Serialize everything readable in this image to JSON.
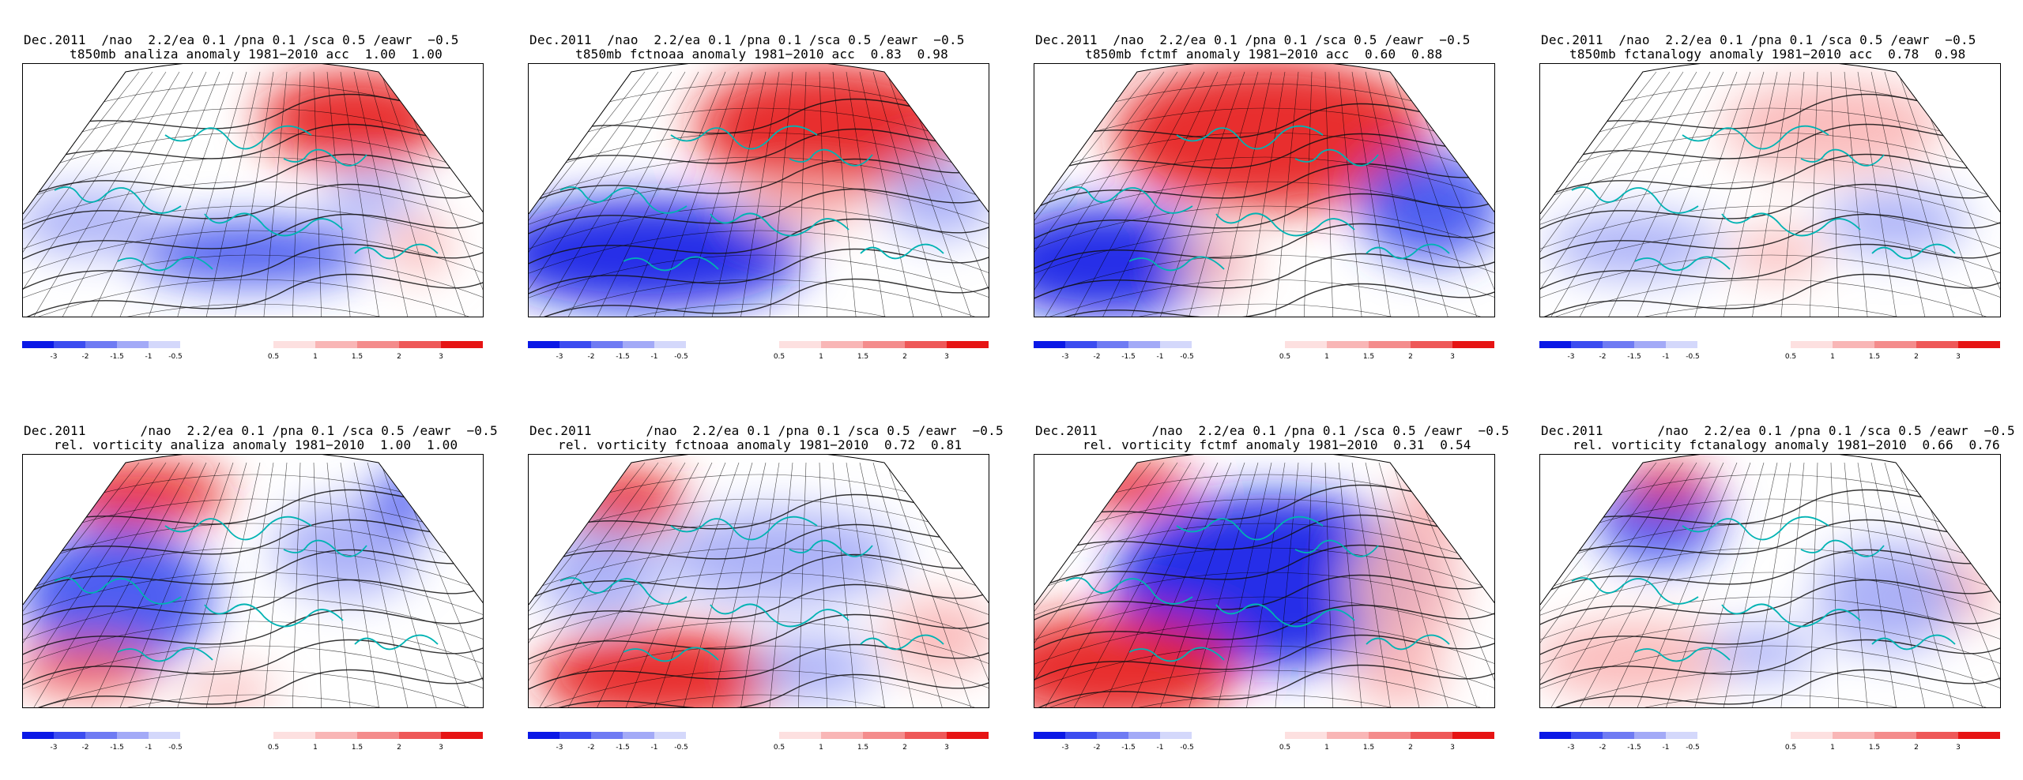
{
  "colorbar": {
    "neg_labels": [
      "-3",
      "-2",
      "-1.5",
      "-1",
      "-0.5"
    ],
    "pos_labels": [
      "0.5",
      "1",
      "1.5",
      "2",
      "3"
    ],
    "neg_colors": [
      "#0a18e6",
      "#3c4cf0",
      "#6f7bf3",
      "#a3aaf7",
      "#d4d8fb"
    ],
    "pos_colors": [
      "#fde0e0",
      "#f9b6b6",
      "#f48c8c",
      "#ee5858",
      "#e61414"
    ]
  },
  "panels": [
    {
      "line1": "Dec.2011  /nao  2.2/ea 0.1 /pna 0.1 /sca 0.5 /eawr  −0.5",
      "line2": "t850mb analiza anomaly 1981−2010 acc  1.00  1.00"
    },
    {
      "line1": "Dec.2011  /nao  2.2/ea 0.1 /pna 0.1 /sca 0.5 /eawr  −0.5",
      "line2": "t850mb fctnoaa anomaly 1981−2010 acc  0.83  0.98"
    },
    {
      "line1": "Dec.2011  /nao  2.2/ea 0.1 /pna 0.1 /sca 0.5 /eawr  −0.5",
      "line2": "t850mb fctmf anomaly 1981−2010 acc  0.60  0.88"
    },
    {
      "line1": "Dec.2011  /nao  2.2/ea 0.1 /pna 0.1 /sca 0.5 /eawr  −0.5",
      "line2": "t850mb fctanalogy anomaly 1981−2010 acc  0.78  0.98"
    },
    {
      "line1": "Dec.2011       /nao  2.2/ea 0.1 /pna 0.1 /sca 0.5 /eawr  −0.5",
      "line2": "rel. vorticity analiza anomaly 1981−2010  1.00  1.00"
    },
    {
      "line1": "Dec.2011       /nao  2.2/ea 0.1 /pna 0.1 /sca 0.5 /eawr  −0.5",
      "line2": "rel. vorticity fctnoaa anomaly 1981−2010  0.72  0.81"
    },
    {
      "line1": "Dec.2011       /nao  2.2/ea 0.1 /pna 0.1 /sca 0.5 /eawr  −0.5",
      "line2": "rel. vorticity fctmf anomaly 1981−2010  0.31  0.54"
    },
    {
      "line1": "Dec.2011       /nao  2.2/ea 0.1 /pna 0.1 /sca 0.5 /eawr  −0.5",
      "line2": "rel. vorticity fctanalogy anomaly 1981−2010  0.66  0.76"
    }
  ]
}
